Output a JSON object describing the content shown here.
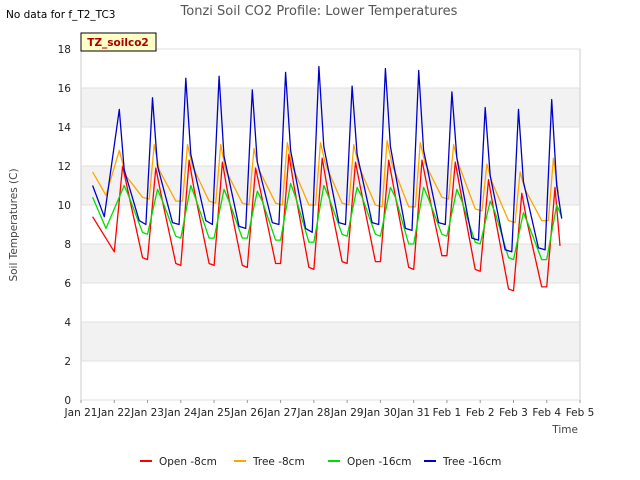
{
  "no_data_text": "No data for f_T2_TC3",
  "badge_label": "TZ_soilco2",
  "chart_data": {
    "type": "line",
    "title": "Tonzi Soil CO2 Profile: Lower Temperatures",
    "xlabel": "Time",
    "ylabel": "Soil Temperatures (C)",
    "ylim": [
      0,
      18
    ],
    "yticks": [
      0,
      2,
      4,
      6,
      8,
      10,
      12,
      14,
      16,
      18
    ],
    "xlim": [
      0,
      15
    ],
    "xtick_labels": [
      "Jan 21",
      "Jan 22",
      "Jan 23",
      "Jan 24",
      "Jan 25",
      "Jan 26",
      "Jan 27",
      "Jan 28",
      "Jan 29",
      "Jan 30",
      "Jan 31",
      "Feb 1",
      "Feb 2",
      "Feb 3",
      "Feb 4",
      "Feb 5"
    ],
    "grid": true,
    "legend_position": "bottom",
    "series": [
      {
        "name": "Open -8cm",
        "color": "#ff0000",
        "days": [
          0.35,
          1.0,
          1.25,
          1.4,
          1.85,
          2.0,
          2.25,
          2.4,
          2.85,
          3.0,
          3.25,
          3.4,
          3.85,
          4.0,
          4.25,
          4.4,
          4.85,
          5.0,
          5.25,
          5.4,
          5.85,
          6.0,
          6.25,
          6.4,
          6.85,
          7.0,
          7.25,
          7.4,
          7.85,
          8.0,
          8.25,
          8.4,
          8.85,
          9.0,
          9.25,
          9.4,
          9.85,
          10.0,
          10.25,
          10.4,
          10.85,
          11.0,
          11.25,
          11.4,
          11.85,
          12.0,
          12.25,
          12.4,
          12.85,
          13.0,
          13.25,
          13.4,
          13.85,
          14.0,
          14.25,
          14.4
        ],
        "values": [
          9.4,
          7.6,
          12.0,
          10.8,
          7.3,
          7.2,
          11.9,
          10.6,
          7.0,
          6.9,
          12.3,
          10.8,
          7.0,
          6.9,
          12.2,
          10.7,
          6.9,
          6.8,
          11.9,
          10.7,
          7.0,
          7.0,
          12.6,
          11.0,
          6.8,
          6.7,
          12.4,
          10.9,
          7.1,
          7.0,
          12.2,
          10.9,
          7.1,
          7.1,
          12.3,
          10.9,
          6.8,
          6.7,
          12.3,
          11.0,
          7.4,
          7.4,
          12.2,
          10.8,
          6.7,
          6.6,
          11.3,
          9.8,
          5.7,
          5.6,
          10.6,
          9.2,
          5.8,
          5.8,
          10.9,
          7.9
        ]
      },
      {
        "name": "Tree -8cm",
        "color": "#ffa500",
        "days": [
          0.35,
          0.75,
          1.15,
          1.35,
          1.85,
          2.05,
          2.2,
          2.35,
          2.85,
          3.05,
          3.2,
          3.35,
          3.85,
          4.05,
          4.2,
          4.35,
          4.85,
          5.05,
          5.2,
          5.35,
          5.85,
          6.05,
          6.2,
          6.35,
          6.85,
          7.05,
          7.2,
          7.35,
          7.85,
          8.05,
          8.2,
          8.35,
          8.85,
          9.05,
          9.2,
          9.35,
          9.85,
          10.05,
          10.2,
          10.35,
          10.85,
          11.05,
          11.2,
          11.35,
          11.85,
          12.05,
          12.2,
          12.35,
          12.85,
          13.05,
          13.2,
          13.35,
          13.85,
          14.05,
          14.2,
          14.35
        ],
        "values": [
          11.7,
          10.5,
          12.8,
          11.5,
          10.4,
          10.3,
          13.1,
          11.8,
          10.2,
          10.2,
          13.1,
          12.0,
          10.2,
          10.1,
          13.1,
          11.8,
          10.1,
          10.0,
          12.9,
          11.8,
          10.1,
          10.0,
          13.2,
          12.0,
          10.0,
          10.0,
          13.2,
          12.1,
          10.1,
          10.0,
          13.1,
          12.0,
          10.0,
          9.9,
          13.3,
          12.1,
          9.9,
          9.9,
          13.2,
          12.1,
          10.4,
          10.3,
          13.1,
          12.1,
          9.8,
          9.7,
          12.1,
          11.2,
          9.2,
          9.1,
          11.7,
          10.8,
          9.2,
          9.2,
          12.4,
          10.6
        ]
      },
      {
        "name": "Open -16cm",
        "color": "#00dd00",
        "days": [
          0.35,
          0.75,
          1.3,
          1.45,
          1.85,
          2.0,
          2.3,
          2.45,
          2.85,
          3.0,
          3.3,
          3.45,
          3.85,
          4.0,
          4.3,
          4.45,
          4.85,
          5.0,
          5.3,
          5.45,
          5.85,
          6.0,
          6.3,
          6.45,
          6.85,
          7.0,
          7.3,
          7.45,
          7.85,
          8.0,
          8.3,
          8.45,
          8.85,
          9.0,
          9.3,
          9.45,
          9.85,
          10.0,
          10.3,
          10.45,
          10.85,
          11.0,
          11.3,
          11.45,
          11.85,
          12.0,
          12.3,
          12.45,
          12.85,
          13.0,
          13.3,
          13.45,
          13.85,
          14.0,
          14.3,
          14.45
        ],
        "values": [
          10.4,
          8.8,
          11.0,
          10.4,
          8.6,
          8.5,
          10.8,
          10.2,
          8.4,
          8.3,
          11.0,
          10.3,
          8.3,
          8.3,
          10.8,
          10.2,
          8.3,
          8.3,
          10.7,
          10.2,
          8.2,
          8.2,
          11.1,
          10.4,
          8.1,
          8.1,
          11.0,
          10.4,
          8.5,
          8.4,
          10.9,
          10.4,
          8.5,
          8.4,
          10.9,
          10.4,
          8.0,
          8.0,
          10.9,
          10.3,
          8.5,
          8.4,
          10.8,
          10.2,
          8.1,
          8.0,
          10.2,
          9.6,
          7.3,
          7.2,
          9.6,
          9.0,
          7.2,
          7.2,
          10.0,
          9.4
        ]
      },
      {
        "name": "Tree -16cm",
        "color": "#0000cc",
        "days": [
          0.35,
          0.7,
          1.15,
          1.3,
          1.75,
          1.95,
          2.15,
          2.3,
          2.75,
          2.95,
          3.15,
          3.3,
          3.75,
          3.95,
          4.15,
          4.3,
          4.75,
          4.95,
          5.15,
          5.3,
          5.75,
          5.95,
          6.15,
          6.3,
          6.75,
          6.95,
          7.15,
          7.3,
          7.75,
          7.95,
          8.15,
          8.3,
          8.75,
          8.95,
          9.15,
          9.3,
          9.75,
          9.95,
          10.15,
          10.3,
          10.75,
          10.95,
          11.15,
          11.3,
          11.75,
          11.95,
          12.15,
          12.3,
          12.75,
          12.95,
          13.15,
          13.3,
          13.75,
          13.95,
          14.15,
          14.3,
          14.45
        ],
        "values": [
          11.0,
          9.4,
          14.9,
          11.8,
          9.2,
          9.0,
          15.5,
          12.0,
          9.1,
          9.0,
          16.5,
          12.6,
          9.2,
          9.0,
          16.6,
          12.5,
          8.9,
          8.8,
          15.9,
          12.2,
          9.1,
          9.0,
          16.8,
          12.8,
          8.8,
          8.6,
          17.1,
          13.0,
          9.1,
          9.0,
          16.1,
          12.6,
          9.1,
          9.0,
          17.0,
          13.0,
          8.8,
          8.7,
          16.9,
          12.8,
          9.1,
          9.0,
          15.8,
          12.4,
          8.3,
          8.2,
          15.0,
          11.5,
          7.7,
          7.6,
          14.9,
          11.2,
          7.8,
          7.7,
          15.4,
          11.0,
          9.3
        ]
      }
    ]
  }
}
